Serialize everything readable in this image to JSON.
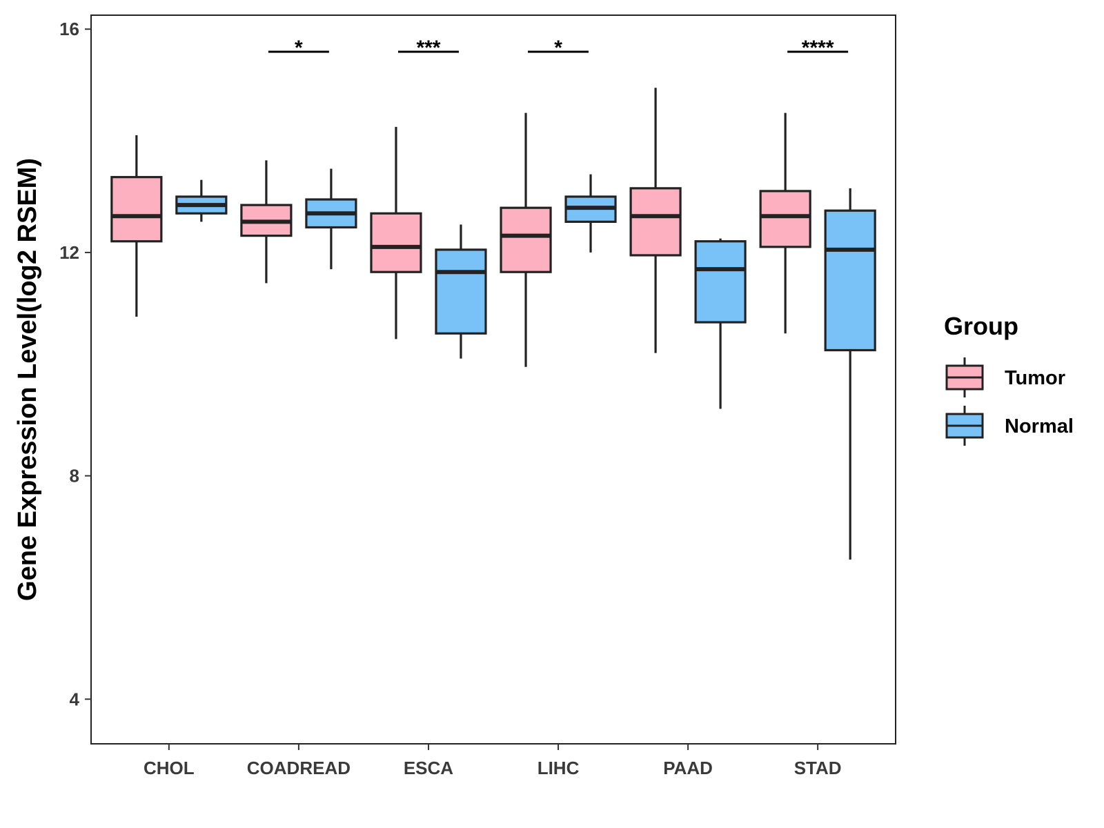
{
  "chart_data": {
    "type": "boxplot",
    "title": "",
    "xlabel": "",
    "ylabel": "Gene Expression Level(log2 RSEM)",
    "ylim": [
      3.2,
      16.25
    ],
    "yticks": [
      4,
      8,
      12,
      16
    ],
    "categories": [
      "CHOL",
      "COADREAD",
      "ESCA",
      "LIHC",
      "PAAD",
      "STAD"
    ],
    "series": [
      {
        "name": "Tumor",
        "color": "#FDB0C0",
        "boxes": [
          {
            "min": 10.85,
            "q1": 12.2,
            "median": 12.65,
            "q3": 13.35,
            "max": 14.1
          },
          {
            "min": 11.45,
            "q1": 12.3,
            "median": 12.55,
            "q3": 12.85,
            "max": 13.65
          },
          {
            "min": 10.45,
            "q1": 11.65,
            "median": 12.1,
            "q3": 12.7,
            "max": 14.25
          },
          {
            "min": 9.95,
            "q1": 11.65,
            "median": 12.3,
            "q3": 12.8,
            "max": 14.5
          },
          {
            "min": 10.2,
            "q1": 11.95,
            "median": 12.65,
            "q3": 13.15,
            "max": 14.95
          },
          {
            "min": 10.55,
            "q1": 12.1,
            "median": 12.65,
            "q3": 13.1,
            "max": 14.5
          }
        ]
      },
      {
        "name": "Normal",
        "color": "#79C2F7",
        "boxes": [
          {
            "min": 12.55,
            "q1": 12.7,
            "median": 12.85,
            "q3": 13.0,
            "max": 13.3
          },
          {
            "min": 11.7,
            "q1": 12.45,
            "median": 12.7,
            "q3": 12.95,
            "max": 13.5
          },
          {
            "min": 10.1,
            "q1": 10.55,
            "median": 11.65,
            "q3": 12.05,
            "max": 12.5
          },
          {
            "min": 12.0,
            "q1": 12.55,
            "median": 12.8,
            "q3": 13.0,
            "max": 13.4
          },
          {
            "min": 9.2,
            "q1": 10.75,
            "median": 11.7,
            "q3": 12.2,
            "max": 12.25
          },
          {
            "min": 6.5,
            "q1": 10.25,
            "median": 12.05,
            "q3": 12.75,
            "max": 13.15
          }
        ]
      }
    ],
    "significance": [
      {
        "category": "COADREAD",
        "label": "*"
      },
      {
        "category": "ESCA",
        "label": "***"
      },
      {
        "category": "LIHC",
        "label": "*"
      },
      {
        "category": "STAD",
        "label": "****"
      }
    ],
    "legend": {
      "title": "Group",
      "position": "right",
      "entries": [
        "Tumor",
        "Normal"
      ]
    }
  }
}
